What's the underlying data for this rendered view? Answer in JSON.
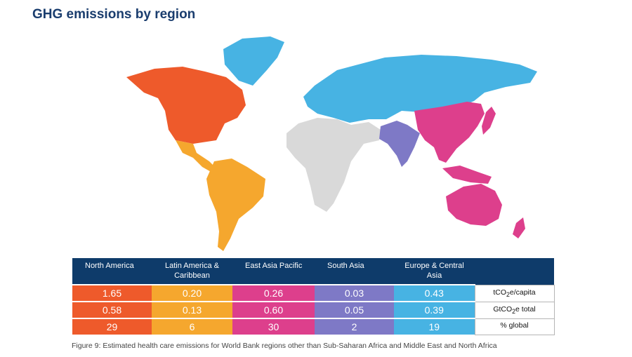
{
  "title": "GHG emissions by region",
  "colors": {
    "north_america": "#ee5a2b",
    "latin_america": "#f5a72e",
    "east_asia_pacific": "#dd3f8c",
    "south_asia": "#7e79c6",
    "europe_central_asia": "#47b3e3",
    "no_data": "#d9d9d9",
    "header_bg": "#0e3b6a"
  },
  "table": {
    "regions": [
      {
        "name": "North America",
        "color": "#ee5a2b"
      },
      {
        "name": "Latin America & Caribbean",
        "color": "#f5a72e"
      },
      {
        "name": "East Asia Pacific",
        "color": "#dd3f8c"
      },
      {
        "name": "South Asia",
        "color": "#7e79c6"
      },
      {
        "name": "Europe & Central Asia",
        "color": "#47b3e3"
      }
    ],
    "rows": [
      {
        "metric_pre": "tCO",
        "metric_sub": "2",
        "metric_post": "e/capita",
        "values": [
          "1.65",
          "0.20",
          "0.26",
          "0.03",
          "0.43"
        ]
      },
      {
        "metric_pre": "GtCO",
        "metric_sub": "2",
        "metric_post": "e total",
        "values": [
          "0.58",
          "0.13",
          "0.60",
          "0.05",
          "0.39"
        ]
      },
      {
        "metric_pre": "% global",
        "metric_sub": "",
        "metric_post": "",
        "values": [
          "29",
          "6",
          "30",
          "2",
          "19"
        ]
      }
    ]
  },
  "caption": "Figure 9: Estimated health care emissions for World Bank regions other than Sub-Saharan Africa and Middle East and North Africa"
}
